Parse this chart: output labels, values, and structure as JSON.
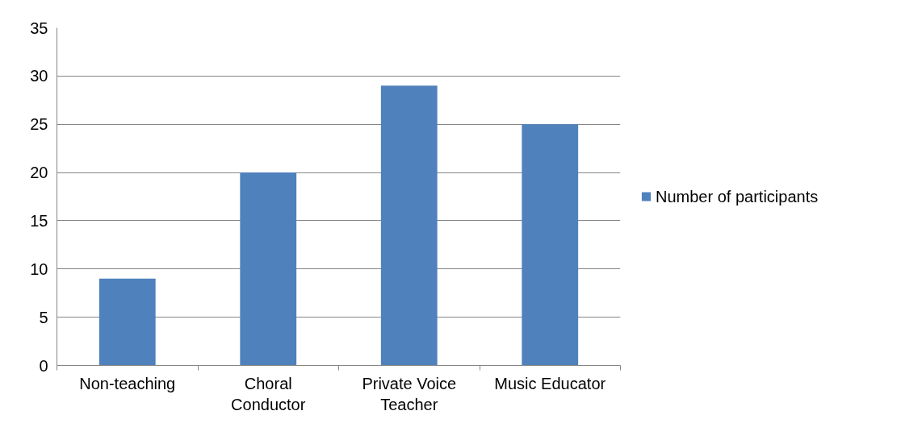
{
  "chart_data": {
    "type": "bar",
    "categories": [
      "Non-teaching",
      "Choral Conductor",
      "Private Voice Teacher",
      "Music Educator"
    ],
    "series": [
      {
        "name": "Number of participants",
        "color": "#4f81bd",
        "values": [
          9,
          20,
          29,
          25
        ]
      }
    ],
    "ylim": [
      0,
      35
    ],
    "yticks": [
      0,
      5,
      10,
      15,
      20,
      25,
      30,
      35
    ],
    "grid": "y",
    "legend": "right"
  }
}
